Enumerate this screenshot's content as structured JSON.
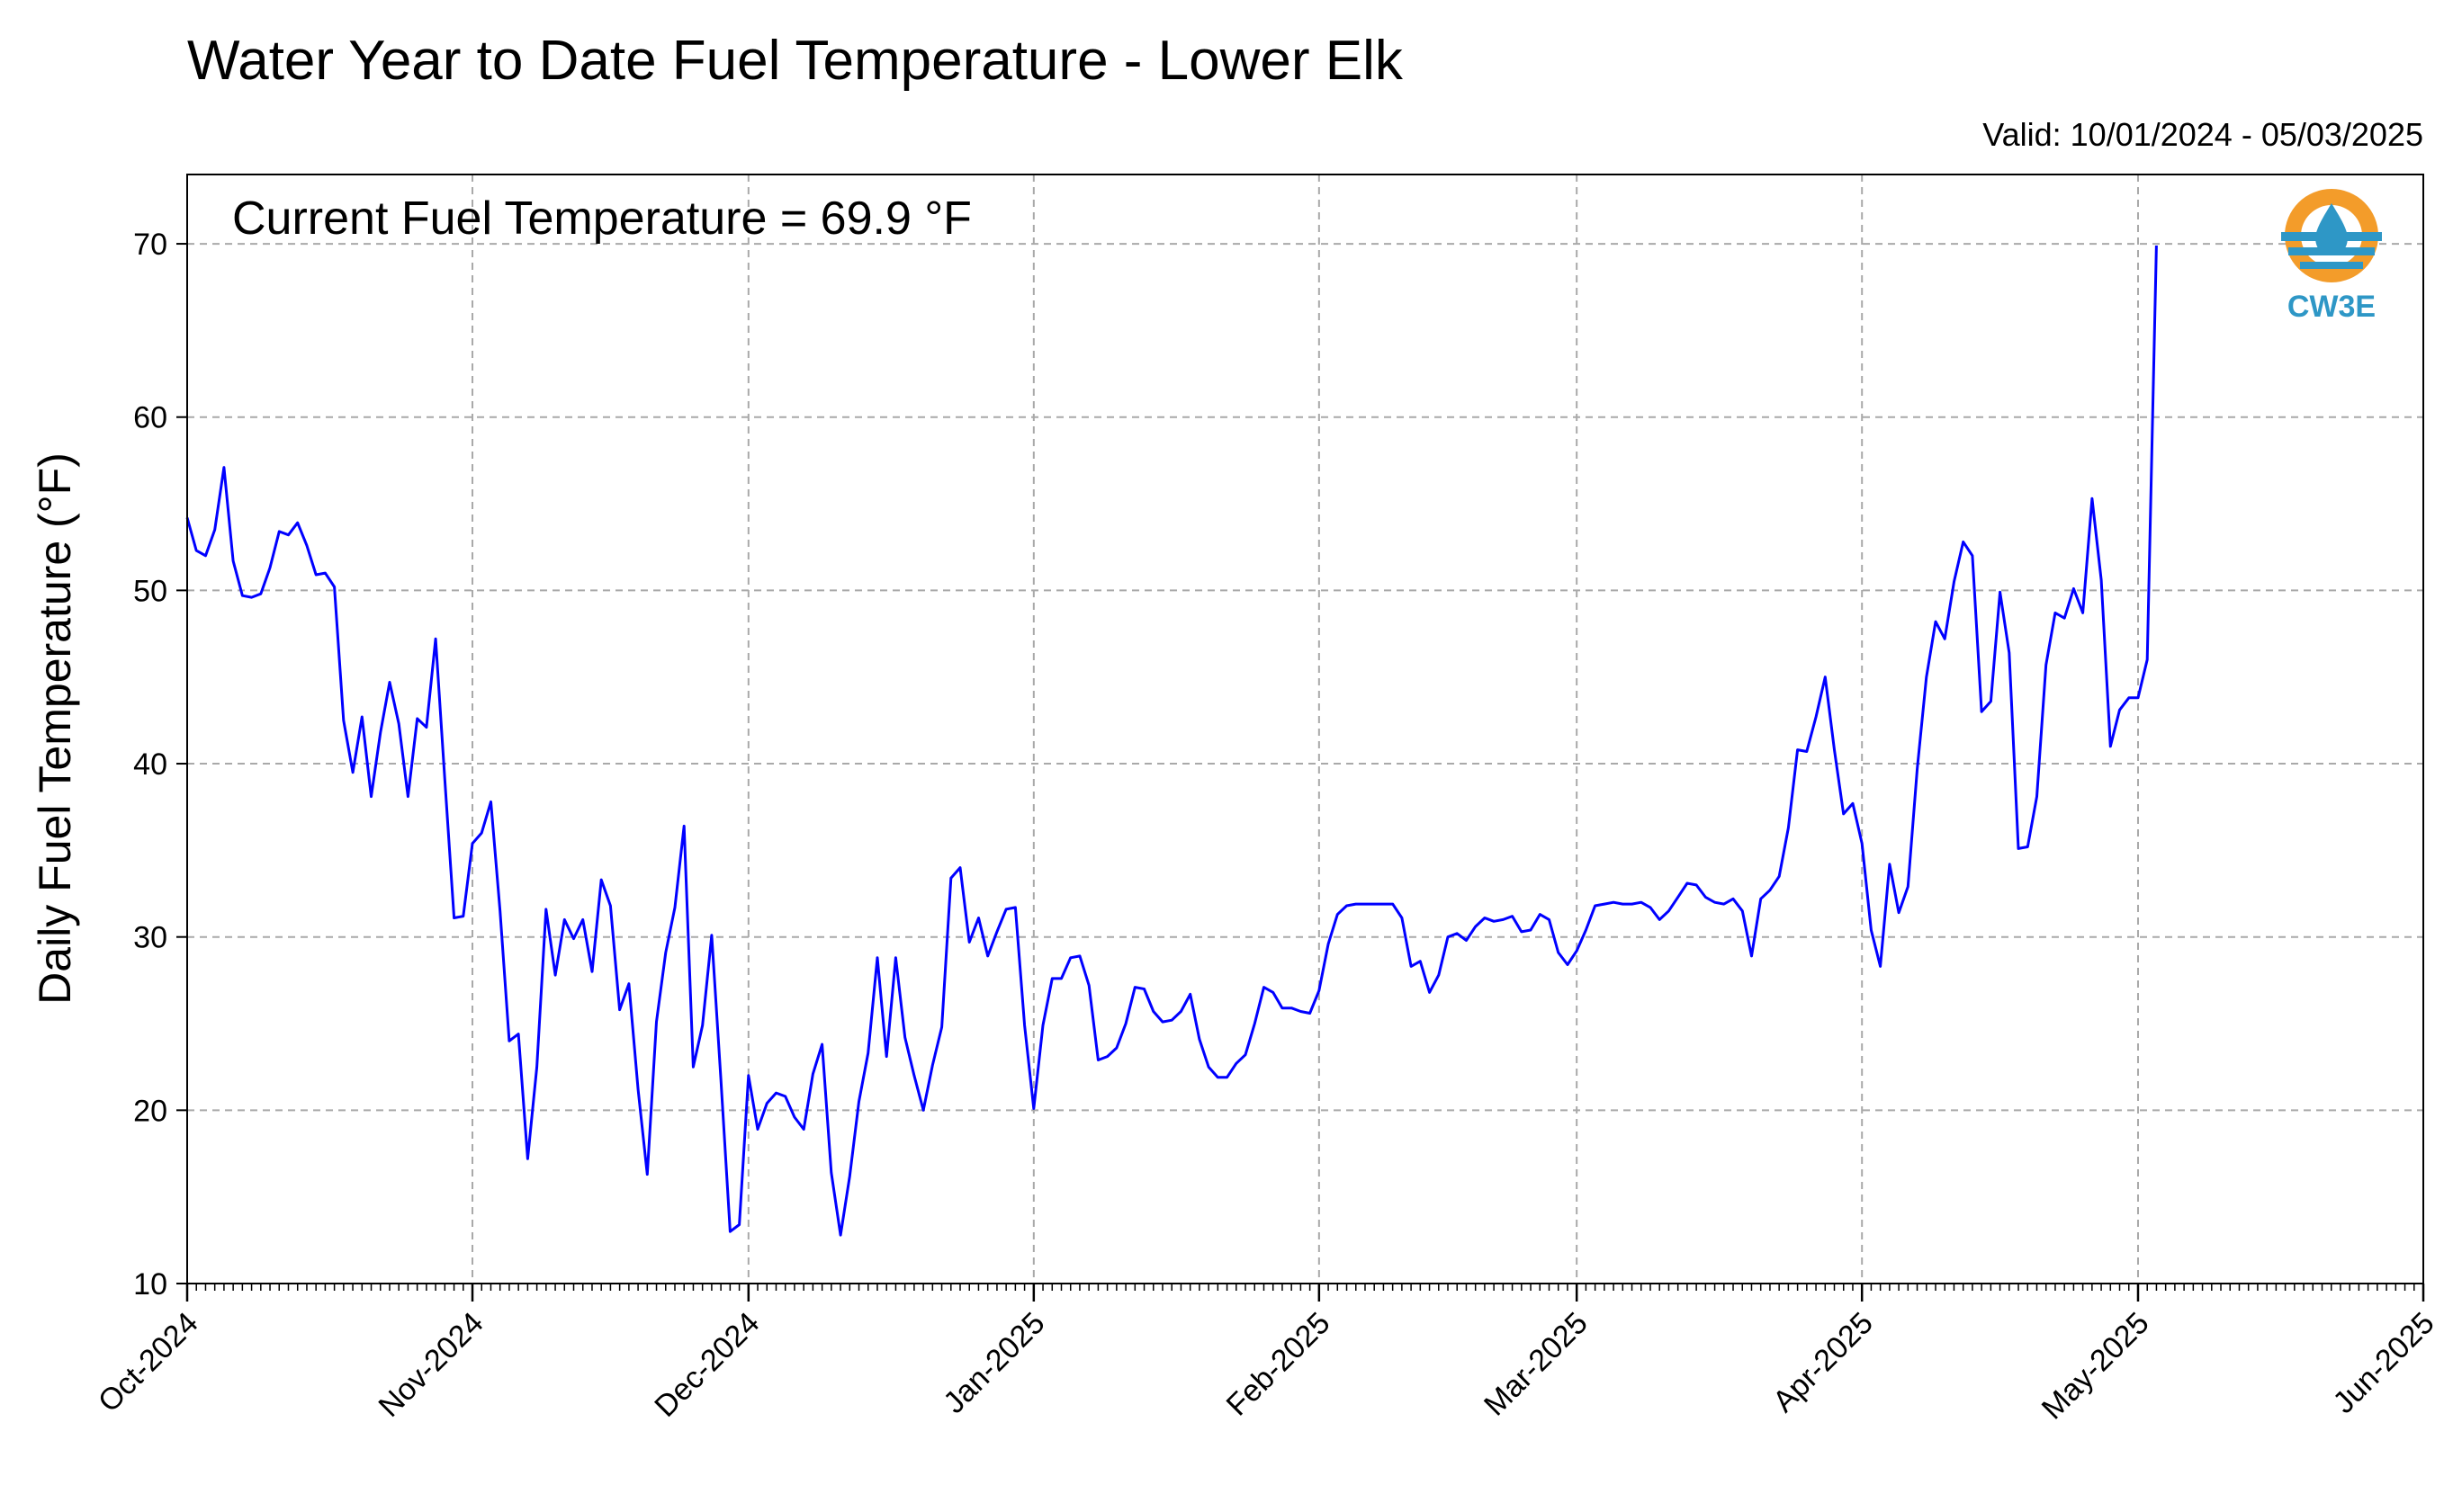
{
  "chart_data": {
    "type": "line",
    "title": "Water Year to Date Fuel Temperature - Lower Elk",
    "subtitle": "Valid: 10/01/2024 - 05/03/2025",
    "annotation": "Current Fuel Temperature = 69.9 °F",
    "xlabel": "",
    "ylabel": "Daily Fuel Temperature (°F)",
    "ylim": [
      10,
      74
    ],
    "xlim": [
      "2024-10-01",
      "2025-06-01"
    ],
    "yticks": [
      10,
      20,
      30,
      40,
      50,
      60,
      70
    ],
    "xtick_labels": [
      "Oct-2024",
      "Nov-2024",
      "Dec-2024",
      "Jan-2025",
      "Feb-2025",
      "Mar-2025",
      "Apr-2025",
      "May-2025",
      "Jun-2025"
    ],
    "xtick_dates": [
      "2024-10-01",
      "2024-11-01",
      "2024-12-01",
      "2025-01-01",
      "2025-02-01",
      "2025-03-01",
      "2025-04-01",
      "2025-05-01",
      "2025-06-01"
    ],
    "grid": true,
    "line_color": "#0000ff",
    "series": [
      {
        "start_date": "2024-10-01",
        "values": [
          54.2,
          52.3,
          52.0,
          53.5,
          57.1,
          51.7,
          49.7,
          49.6,
          49.8,
          51.3,
          53.4,
          53.2,
          53.9,
          52.6,
          50.9,
          51.0,
          50.2,
          42.5,
          39.5,
          42.7,
          38.1,
          41.8,
          44.7,
          42.3,
          38.1,
          42.6,
          42.1,
          47.2,
          39.1,
          31.1,
          31.2,
          35.4,
          36.0,
          37.8,
          31.5,
          24.0,
          24.4,
          17.2,
          22.5,
          31.6,
          27.8,
          31.0,
          29.9,
          31.0,
          28.0,
          33.3,
          31.8,
          25.8,
          27.3,
          21.2,
          16.3,
          25.1,
          29.1,
          31.7,
          36.4,
          22.5,
          24.9,
          30.1,
          21.8,
          13.0,
          13.4,
          22.0,
          18.9,
          20.4,
          21.0,
          20.8,
          19.6,
          18.9,
          22.1,
          23.8,
          16.4,
          12.8,
          16.2,
          20.5,
          23.3,
          28.8,
          23.1,
          28.8,
          24.2,
          22.0,
          20.0,
          22.6,
          24.8,
          33.4,
          34.0,
          29.7,
          31.1,
          28.9,
          30.3,
          31.6,
          31.7,
          24.9,
          20.1,
          24.9,
          27.6,
          27.6,
          28.8,
          28.9,
          27.2,
          22.9,
          23.1,
          23.6,
          25.0,
          27.1,
          27.0,
          25.7,
          25.1,
          25.2,
          25.7,
          26.7,
          24.1,
          22.5,
          21.9,
          21.9,
          22.7,
          23.2,
          25.0,
          27.1,
          26.8,
          25.9,
          25.9,
          25.7,
          25.6,
          26.9,
          29.6,
          31.3,
          31.8,
          31.9,
          31.9,
          31.9,
          31.9,
          31.9,
          31.1,
          28.3,
          28.6,
          26.8,
          27.8,
          30.0,
          30.2,
          29.8,
          30.6,
          31.1,
          30.9,
          31.0,
          31.2,
          30.3,
          30.4,
          31.3,
          31.0,
          29.1,
          28.4,
          29.2,
          30.4,
          31.8,
          31.9,
          32.0,
          31.9,
          31.9,
          32.0,
          31.7,
          31.0,
          31.5,
          32.3,
          33.1,
          33.0,
          32.3,
          32.0,
          31.9,
          32.2,
          31.5,
          28.9,
          32.2,
          32.7,
          33.5,
          36.3,
          40.8,
          40.7,
          42.7,
          45.0,
          40.8,
          37.1,
          37.7,
          35.4,
          30.4,
          28.3,
          34.2,
          31.4,
          32.9,
          39.7,
          45.0,
          48.2,
          47.2,
          50.5,
          52.8,
          52.0,
          43.0,
          43.6,
          49.9,
          46.4,
          35.1,
          35.2,
          38.1,
          45.7,
          48.7,
          48.4,
          50.1,
          48.7,
          55.3,
          50.6,
          41.0,
          43.1,
          43.8,
          43.8,
          46.0,
          69.9
        ]
      }
    ]
  }
}
